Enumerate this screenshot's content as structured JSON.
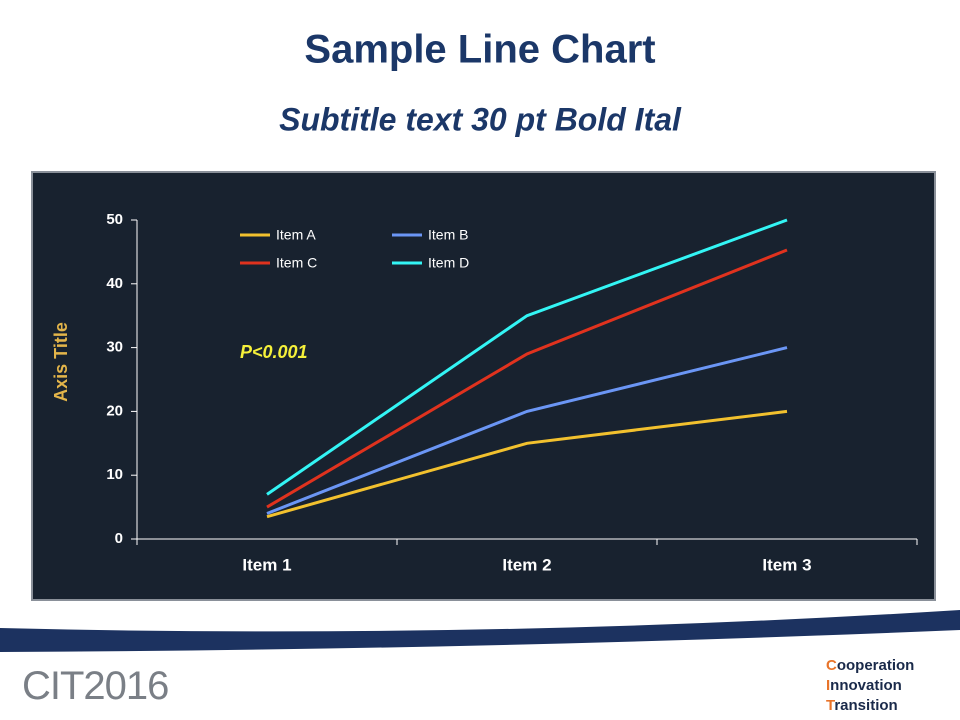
{
  "chart_data": {
    "type": "line",
    "title": "Sample Line Chart",
    "subtitle": "Subtitle text 30 pt Bold Ital",
    "y_label": "Axis Title",
    "annotation": "P<0.001",
    "categories": [
      "Item 1",
      "Item 2",
      "Item 3"
    ],
    "series": [
      {
        "name": "Item A",
        "color": "#f2c12e",
        "values": [
          3.5,
          15,
          20
        ]
      },
      {
        "name": "Item B",
        "color": "#6b96f5",
        "values": [
          4,
          20,
          30
        ]
      },
      {
        "name": "Item C",
        "color": "#e0321e",
        "values": [
          5,
          29,
          45.3
        ]
      },
      {
        "name": "Item D",
        "color": "#33f5f5",
        "values": [
          7,
          35,
          50
        ]
      }
    ],
    "ylim": [
      0,
      50
    ],
    "yticks": [
      0,
      10,
      20,
      30,
      40,
      50
    ]
  },
  "footer": {
    "logo": "CIT2016",
    "tagline": [
      "Cooperation",
      "Innovation",
      "Transition"
    ]
  }
}
